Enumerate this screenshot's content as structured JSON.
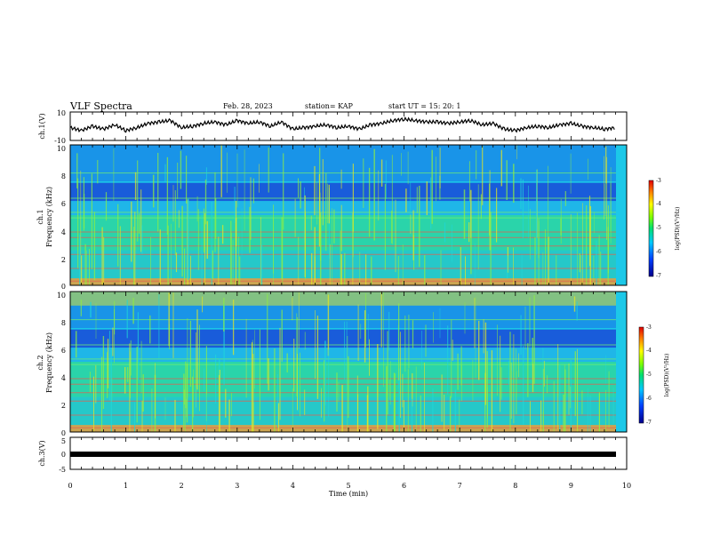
{
  "header": {
    "title": "VLF Spectra",
    "date": "Feb. 28, 2023",
    "station": "station= KAP",
    "start": "start UT = 15: 20: 1"
  },
  "axes": {
    "x_label": "Time (min)",
    "ch1_voltage_label": "ch.1(V)",
    "ch1_spec_label_line1": "ch.1",
    "ch1_spec_label_line2": "Frequency (kHz)",
    "ch2_spec_label_line1": "ch.2",
    "ch2_spec_label_line2": "Frequency (kHz)",
    "ch3_voltage_label": "ch.3(V)",
    "colorbar_label": "log(PSD)(V²/Hz)"
  },
  "chart_data": [
    {
      "type": "line",
      "panel": "ch1-voltage",
      "ylabel": "ch.1(V)",
      "xlim": [
        0,
        10
      ],
      "ylim": [
        -10,
        10
      ],
      "yticks": [
        "10",
        "-10"
      ],
      "description_free": true,
      "series": [
        {
          "x": [
            0,
            0.2,
            0.4,
            0.6,
            0.8,
            1.0,
            1.2,
            1.4,
            1.6,
            1.8,
            2.0,
            2.2,
            2.4,
            2.6,
            2.8,
            3.0,
            3.2,
            3.4,
            3.6,
            3.8,
            4.0,
            4.2,
            4.4,
            4.6,
            4.8,
            5.0,
            5.2,
            5.4,
            5.6,
            5.8,
            6.0,
            6.2,
            6.4,
            6.6,
            6.8,
            7.0,
            7.2,
            7.4,
            7.6,
            7.8,
            8.0,
            8.2,
            8.4,
            8.6,
            8.8,
            9.0,
            9.2,
            9.4,
            9.6,
            9.8
          ],
          "values": [
            -1,
            -3,
            0,
            -2,
            1,
            -3,
            -1,
            2,
            3,
            4,
            -1,
            0,
            2,
            3,
            1,
            4,
            2,
            3,
            0,
            3,
            -2,
            -1,
            0,
            1,
            -1,
            0,
            -2,
            1,
            2,
            4,
            5,
            4,
            3,
            3,
            2,
            3,
            4,
            1,
            2,
            -2,
            -3,
            -1,
            0,
            -1,
            1,
            2,
            0,
            -1,
            -2,
            -1
          ]
        }
      ]
    },
    {
      "type": "heatmap",
      "panel": "ch1-spectrogram",
      "ylabel": "Frequency (kHz)",
      "xlim": [
        0,
        10
      ],
      "ylim": [
        0,
        10
      ],
      "yticks": [
        "0",
        "2",
        "4",
        "6",
        "8",
        "10"
      ],
      "colorbar": {
        "min": -7,
        "max": -3,
        "ticks": [
          "-3",
          "-4",
          "-5",
          "-6",
          "-7"
        ],
        "label": "log(PSD)(V²/Hz)"
      }
    },
    {
      "type": "heatmap",
      "panel": "ch2-spectrogram",
      "ylabel": "Frequency (kHz)",
      "xlim": [
        0,
        10
      ],
      "ylim": [
        0,
        10
      ],
      "yticks": [
        "0",
        "2",
        "4",
        "6",
        "8",
        "10"
      ],
      "colorbar": {
        "min": -7,
        "max": -3,
        "ticks": [
          "-3",
          "-4",
          "-5",
          "-6",
          "-7"
        ],
        "label": "log(PSD)(V²/Hz)"
      }
    },
    {
      "type": "line",
      "panel": "ch3-voltage",
      "ylabel": "ch.3(V)",
      "xlim": [
        0,
        10
      ],
      "ylim": [
        -5,
        5
      ],
      "yticks": [
        "5",
        "0",
        "-5"
      ],
      "series": [
        {
          "x": [
            0,
            9.8
          ],
          "values": [
            0,
            0
          ]
        }
      ]
    }
  ],
  "x_ticks": [
    "0",
    "1",
    "2",
    "3",
    "4",
    "5",
    "6",
    "7",
    "8",
    "9",
    "10"
  ]
}
